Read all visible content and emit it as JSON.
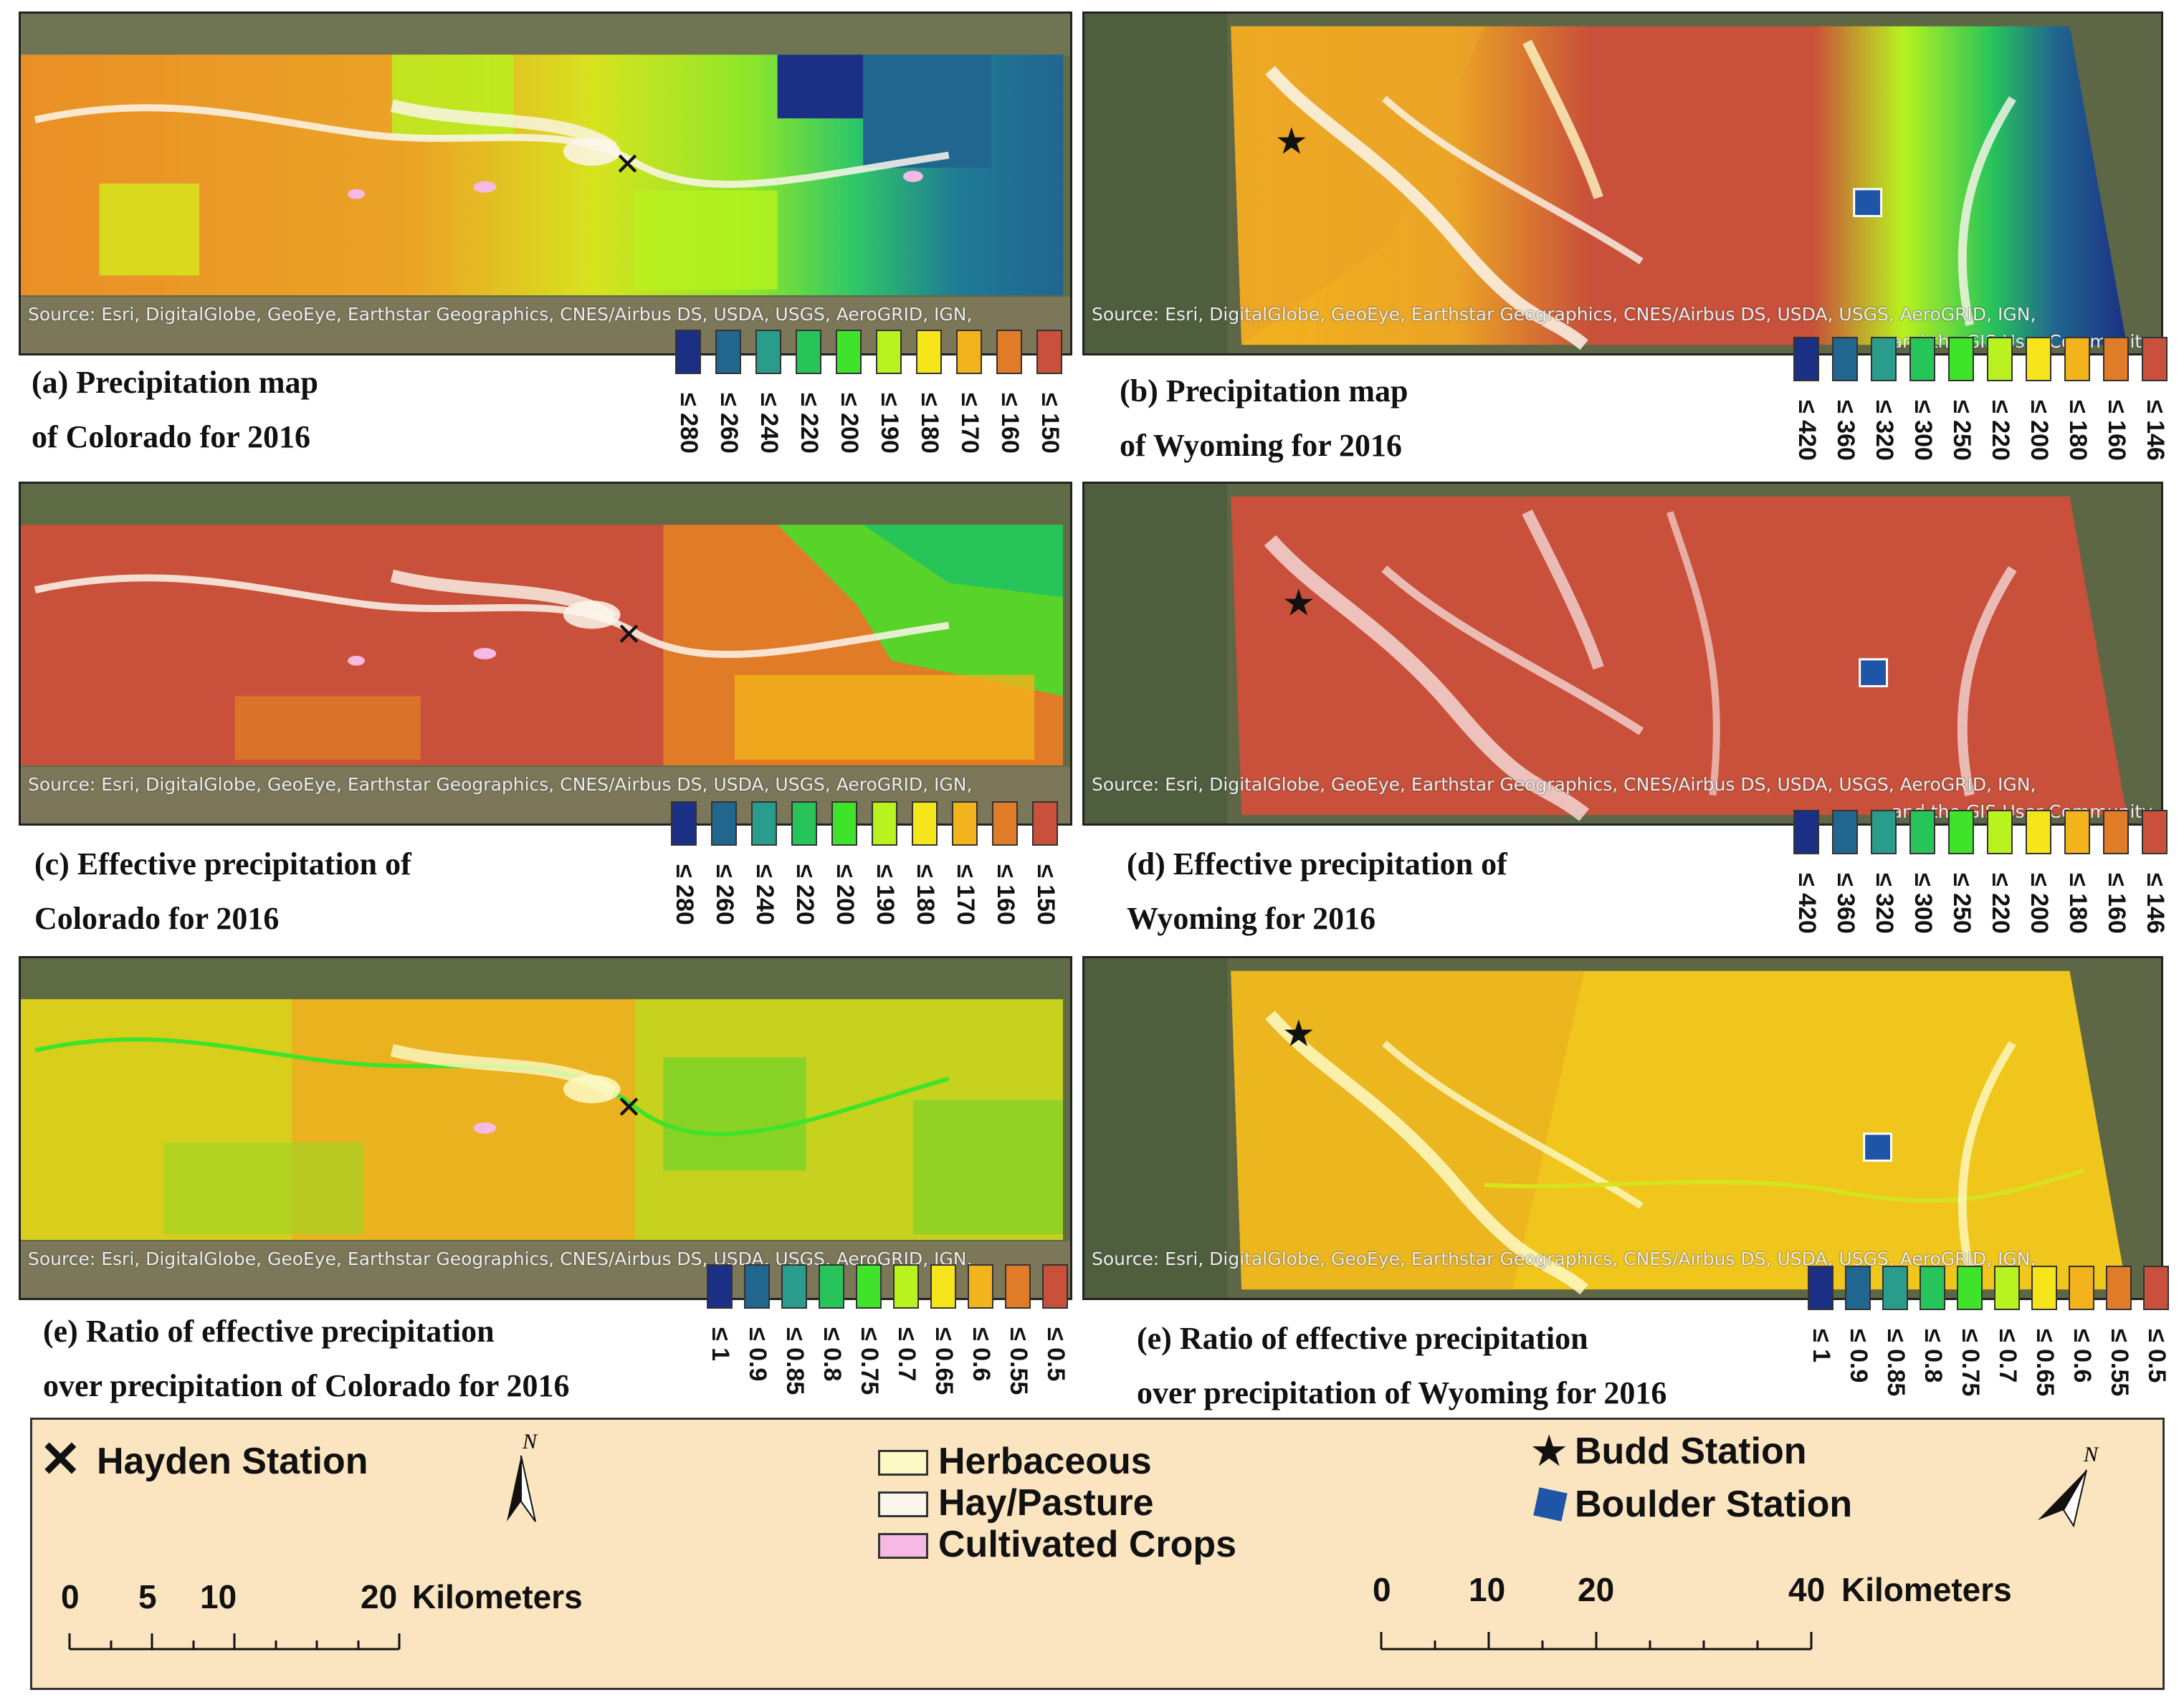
{
  "captions": {
    "a": [
      "(a) Precipitation map",
      "of Colorado for 2016"
    ],
    "b": [
      "(b) Precipitation map",
      "of Wyoming for 2016"
    ],
    "c": [
      "(c) Effective precipitation of",
      "Colorado for 2016"
    ],
    "d": [
      "(d) Effective precipitation of",
      "Wyoming for 2016"
    ],
    "e": [
      "(e) Ratio of effective precipitation",
      "over precipitation of Colorado for 2016"
    ],
    "f": [
      "(e) Ratio of effective precipitation",
      "over precipitation of Wyoming for 2016"
    ]
  },
  "source_text": "Source: Esri, DigitalGlobe, GeoEye, Earthstar Geographics, CNES/Airbus DS, USDA, USGS, AeroGRID, IGN,",
  "source_text_2": "and the GIS User Community",
  "legend_colors": [
    "#1b2f85",
    "#21668f",
    "#2a9c8c",
    "#27c45a",
    "#3fe32a",
    "#b8f21f",
    "#f7e51c",
    "#f2b31c",
    "#e07b27",
    "#c9503a"
  ],
  "legends": {
    "co_precip": [
      "≤ 280",
      "≤ 260",
      "≤ 240",
      "≤ 220",
      "≤ 200",
      "≤ 190",
      "≤ 180",
      "≤ 170",
      "≤ 160",
      "≤ 150"
    ],
    "wy_precip": [
      "≤ 420",
      "≤ 360",
      "≤ 320",
      "≤ 300",
      "≤ 250",
      "≤ 220",
      "≤ 200",
      "≤ 180",
      "≤ 160",
      "≤ 146"
    ],
    "ratio": [
      "≤ 1",
      "≤ 0.9",
      "≤ 0.85",
      "≤ 0.8",
      "≤ 0.75",
      "≤ 0.7",
      "≤ 0.65",
      "≤ 0.6",
      "≤ 0.55",
      "≤ 0.5"
    ]
  },
  "bottom_legend": {
    "hayden": "Hayden Station",
    "herbaceous": "Herbaceous",
    "hay_pasture": "Hay/Pasture",
    "cultivated": "Cultivated Crops",
    "budd": "Budd Station",
    "boulder": "Boulder Station",
    "north": "N",
    "colors": {
      "herbaceous": "#fdf9c4",
      "hay_pasture": "#fbf6ec",
      "cultivated": "#f6b9e3",
      "boulder": "#1e55a6"
    },
    "scale_co": {
      "ticks": [
        "0",
        "5",
        "10",
        "20"
      ],
      "unit": "Kilometers"
    },
    "scale_wy": {
      "ticks": [
        "0",
        "10",
        "20",
        "40"
      ],
      "unit": "Kilometers"
    }
  }
}
